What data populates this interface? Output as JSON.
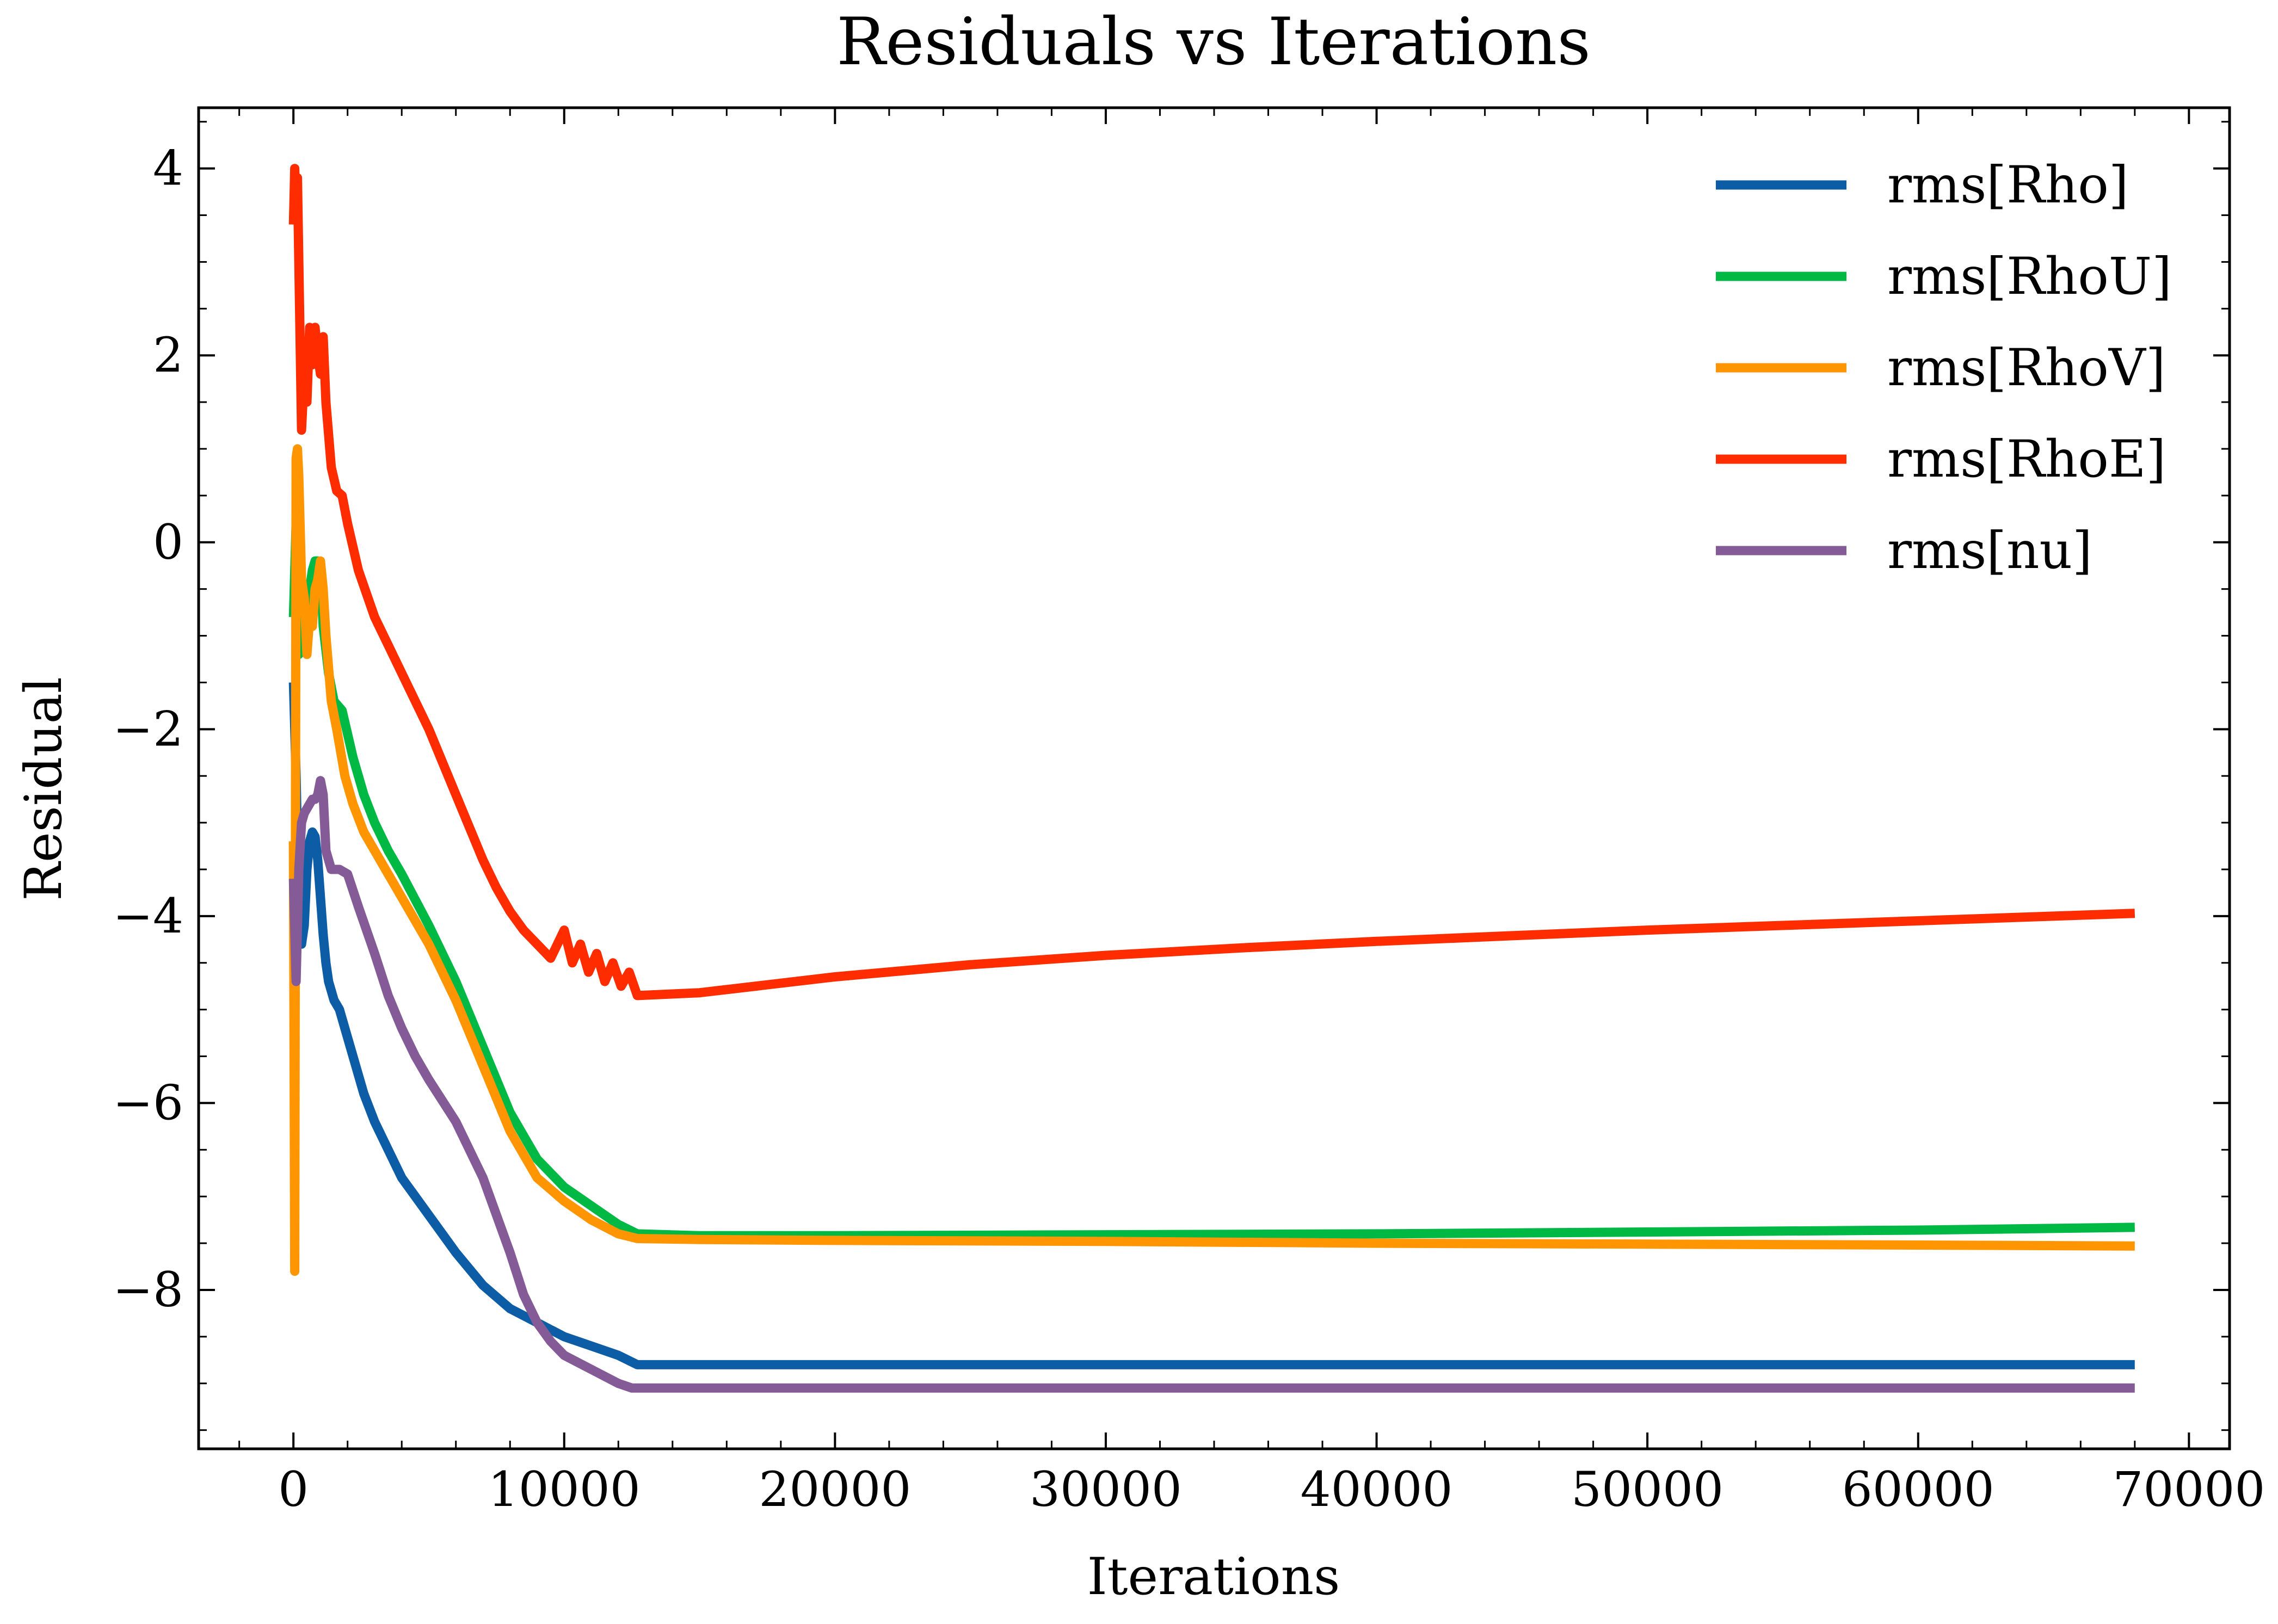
{
  "chart_data": {
    "type": "line",
    "title": "Residuals vs Iterations",
    "xlabel": "Iterations",
    "ylabel": "Residual",
    "xlim": [
      -3500,
      71500
    ],
    "ylim": [
      -9.7,
      4.65
    ],
    "xticks": [
      0,
      10000,
      20000,
      30000,
      40000,
      50000,
      60000,
      70000
    ],
    "xtick_labels": [
      "0",
      "10000",
      "20000",
      "30000",
      "40000",
      "50000",
      "60000",
      "70000"
    ],
    "yticks": [
      4,
      2,
      0,
      -2,
      -4,
      -6,
      -8
    ],
    "ytick_labels": [
      "4",
      "2",
      "0",
      "−2",
      "−4",
      "−6",
      "−8"
    ],
    "grid": false,
    "legend_position": "top-right",
    "series": [
      {
        "name": "rms[Rho]",
        "color": "#0C5DA5",
        "x": [
          0,
          100,
          200,
          300,
          400,
          500,
          600,
          700,
          800,
          900,
          1000,
          1100,
          1200,
          1300,
          1500,
          1700,
          2000,
          2300,
          2600,
          3000,
          3500,
          4000,
          5000,
          6000,
          7000,
          8000,
          9000,
          10000,
          11000,
          12000,
          12700,
          15000,
          20000,
          30000,
          40000,
          50000,
          60000,
          68000
        ],
        "y": [
          -1.5,
          -2.5,
          -3.9,
          -4.3,
          -4.1,
          -3.5,
          -3.2,
          -3.1,
          -3.15,
          -3.4,
          -3.8,
          -4.2,
          -4.5,
          -4.7,
          -4.9,
          -5.0,
          -5.3,
          -5.6,
          -5.9,
          -6.2,
          -6.5,
          -6.8,
          -7.2,
          -7.6,
          -7.95,
          -8.2,
          -8.35,
          -8.5,
          -8.6,
          -8.7,
          -8.8,
          -8.8,
          -8.8,
          -8.8,
          -8.8,
          -8.8,
          -8.8,
          -8.8
        ]
      },
      {
        "name": "rms[RhoU]",
        "color": "#00B945",
        "x": [
          0,
          100,
          200,
          300,
          400,
          500,
          600,
          700,
          800,
          900,
          1000,
          1100,
          1300,
          1500,
          1800,
          2200,
          2600,
          3000,
          3500,
          4000,
          5000,
          6000,
          7000,
          8000,
          9000,
          10000,
          11000,
          12000,
          12700,
          15000,
          20000,
          30000,
          40000,
          50000,
          60000,
          68000
        ],
        "y": [
          -0.8,
          0.2,
          -1.2,
          -0.6,
          -0.9,
          -0.5,
          -0.5,
          -0.3,
          -0.2,
          -0.2,
          -0.3,
          -0.9,
          -1.4,
          -1.7,
          -1.8,
          -2.3,
          -2.7,
          -3.0,
          -3.3,
          -3.55,
          -4.1,
          -4.7,
          -5.4,
          -6.1,
          -6.6,
          -6.9,
          -7.1,
          -7.3,
          -7.4,
          -7.42,
          -7.42,
          -7.41,
          -7.4,
          -7.38,
          -7.36,
          -7.33
        ]
      },
      {
        "name": "rms[RhoV]",
        "color": "#FF9500",
        "x": [
          0,
          50,
          100,
          150,
          200,
          300,
          400,
          500,
          600,
          700,
          800,
          900,
          1000,
          1100,
          1200,
          1400,
          1600,
          1900,
          2200,
          2600,
          3000,
          3500,
          4000,
          5000,
          6000,
          7000,
          8000,
          9000,
          10000,
          11000,
          12000,
          12700,
          15000,
          20000,
          30000,
          40000,
          50000,
          60000,
          68000
        ],
        "y": [
          -3.2,
          -7.8,
          0.9,
          1.0,
          0.7,
          -0.4,
          -0.6,
          -1.2,
          -0.8,
          -0.9,
          -0.5,
          -0.4,
          -0.2,
          -0.5,
          -1.0,
          -1.7,
          -2.0,
          -2.5,
          -2.8,
          -3.1,
          -3.3,
          -3.55,
          -3.8,
          -4.3,
          -4.9,
          -5.6,
          -6.3,
          -6.8,
          -7.05,
          -7.25,
          -7.4,
          -7.45,
          -7.46,
          -7.47,
          -7.48,
          -7.5,
          -7.51,
          -7.52,
          -7.53
        ]
      },
      {
        "name": "rms[RhoE]",
        "color": "#FF2C00",
        "x": [
          0,
          50,
          100,
          150,
          200,
          300,
          400,
          500,
          600,
          700,
          800,
          900,
          1000,
          1100,
          1200,
          1400,
          1600,
          1800,
          2000,
          2400,
          3000,
          3500,
          4000,
          4500,
          5000,
          5500,
          6000,
          6500,
          7000,
          7500,
          8000,
          8500,
          9000,
          9500,
          10000,
          10300,
          10600,
          10900,
          11200,
          11500,
          11800,
          12100,
          12400,
          12700,
          15000,
          20000,
          25000,
          30000,
          35000,
          40000,
          45000,
          50000,
          55000,
          60000,
          65000,
          68000
        ],
        "y": [
          3.4,
          4.0,
          3.5,
          3.9,
          3.0,
          1.2,
          1.8,
          1.5,
          2.3,
          1.9,
          2.3,
          2.0,
          1.8,
          2.2,
          1.5,
          0.8,
          0.55,
          0.5,
          0.2,
          -0.3,
          -0.8,
          -1.1,
          -1.4,
          -1.7,
          -2.0,
          -2.35,
          -2.7,
          -3.05,
          -3.4,
          -3.7,
          -3.95,
          -4.15,
          -4.3,
          -4.45,
          -4.15,
          -4.5,
          -4.3,
          -4.6,
          -4.4,
          -4.7,
          -4.5,
          -4.75,
          -4.6,
          -4.85,
          -4.82,
          -4.65,
          -4.52,
          -4.42,
          -4.34,
          -4.27,
          -4.21,
          -4.15,
          -4.1,
          -4.05,
          -4.0,
          -3.97
        ]
      },
      {
        "name": "rms[nu]",
        "color": "#845B97",
        "x": [
          0,
          100,
          200,
          300,
          400,
          500,
          600,
          700,
          800,
          900,
          1000,
          1100,
          1200,
          1400,
          1700,
          2000,
          2400,
          3000,
          3500,
          4000,
          4500,
          5000,
          6000,
          7000,
          8000,
          8500,
          9000,
          9500,
          10000,
          11000,
          12000,
          12500,
          15000,
          20000,
          30000,
          40000,
          50000,
          60000,
          68000
        ],
        "y": [
          -3.6,
          -4.7,
          -3.5,
          -3.0,
          -2.9,
          -2.85,
          -2.8,
          -2.75,
          -2.75,
          -2.7,
          -2.55,
          -2.7,
          -3.3,
          -3.5,
          -3.5,
          -3.55,
          -3.9,
          -4.4,
          -4.85,
          -5.2,
          -5.5,
          -5.75,
          -6.2,
          -6.8,
          -7.6,
          -8.05,
          -8.35,
          -8.55,
          -8.7,
          -8.85,
          -9.0,
          -9.05,
          -9.05,
          -9.05,
          -9.05,
          -9.05,
          -9.05,
          -9.05,
          -9.05
        ]
      }
    ]
  }
}
